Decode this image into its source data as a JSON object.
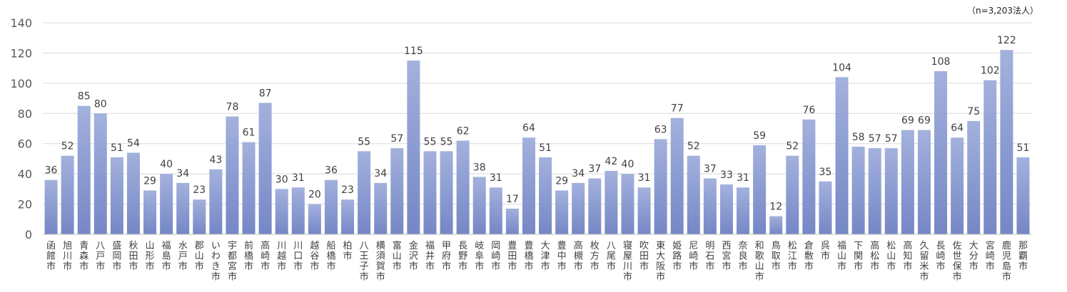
{
  "note": "（n=3,203法人）",
  "colors": {
    "bar_top": "#a3b1dd",
    "bar_bottom": "#7587c6",
    "grid": "#d9d9d9",
    "axis": "#bfbfbf"
  },
  "chart_data": {
    "type": "bar",
    "title": "",
    "xlabel": "",
    "ylabel": "",
    "ylim": [
      0,
      140
    ],
    "yticks": [
      0,
      20,
      40,
      60,
      80,
      100,
      120,
      140
    ],
    "grid": true,
    "categories": [
      "函館市",
      "旭川市",
      "青森市",
      "八戸市",
      "盛岡市",
      "秋田市",
      "山形市",
      "福島市",
      "水戸市",
      "郡山市",
      "いわき市",
      "宇都宮市",
      "前橋市",
      "高崎市",
      "川越市",
      "川口市",
      "越谷市",
      "船橋市",
      "柏市",
      "八王子市",
      "横須賀市",
      "富山市",
      "金沢市",
      "福井市",
      "甲府市",
      "長野市",
      "岐阜市",
      "岡崎市",
      "豊田市",
      "豊橋市",
      "大津市",
      "豊中市",
      "高槻市",
      "枚方市",
      "八尾市",
      "寝屋川市",
      "吹田市",
      "東大阪市",
      "姫路市",
      "尼崎市",
      "明石市",
      "西宮市",
      "奈良市",
      "和歌山市",
      "鳥取市",
      "松江市",
      "倉敷市",
      "呉市",
      "福山市",
      "下関市",
      "高松市",
      "松山市",
      "高知市",
      "久留米市",
      "長崎市",
      "佐世保市",
      "大分市",
      "宮崎市",
      "鹿児島市",
      "那覇市"
    ],
    "values": [
      36,
      52,
      85,
      80,
      51,
      54,
      29,
      40,
      34,
      23,
      43,
      78,
      61,
      87,
      30,
      31,
      20,
      36,
      23,
      55,
      34,
      57,
      115,
      55,
      55,
      62,
      38,
      31,
      17,
      64,
      51,
      29,
      34,
      37,
      42,
      40,
      31,
      63,
      77,
      52,
      37,
      33,
      31,
      59,
      12,
      52,
      76,
      35,
      104,
      58,
      57,
      57,
      69,
      69,
      108,
      64,
      75,
      102,
      122,
      51
    ]
  }
}
